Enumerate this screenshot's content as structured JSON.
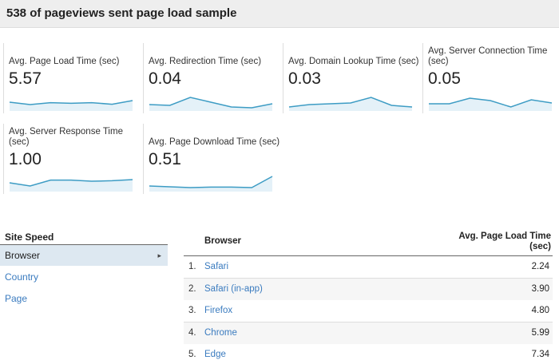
{
  "header": {
    "title": "538 of pageviews sent page load sample"
  },
  "metrics": [
    {
      "label": "Avg. Page Load Time (sec)",
      "value": "5.57",
      "trend": [
        0.45,
        0.3,
        0.42,
        0.38,
        0.42,
        0.32,
        0.55
      ]
    },
    {
      "label": "Avg. Redirection Time (sec)",
      "value": "0.04",
      "trend": [
        0.3,
        0.25,
        0.75,
        0.45,
        0.15,
        0.1,
        0.35
      ]
    },
    {
      "label": "Avg. Domain Lookup Time (sec)",
      "value": "0.03",
      "trend": [
        0.15,
        0.3,
        0.35,
        0.4,
        0.75,
        0.25,
        0.15
      ]
    },
    {
      "label": "Avg. Server Connection Time (sec)",
      "value": "0.05",
      "trend": [
        0.35,
        0.35,
        0.7,
        0.55,
        0.15,
        0.6,
        0.4
      ]
    },
    {
      "label": "Avg. Server Response Time (sec)",
      "value": "1.00",
      "trend": [
        0.45,
        0.25,
        0.62,
        0.62,
        0.55,
        0.58,
        0.65
      ]
    },
    {
      "label": "Avg. Page Download Time (sec)",
      "value": "0.51",
      "trend": [
        0.25,
        0.2,
        0.15,
        0.18,
        0.18,
        0.15,
        0.85
      ]
    }
  ],
  "site_speed": {
    "title": "Site Speed",
    "items": [
      "Browser",
      "Country",
      "Page"
    ]
  },
  "table": {
    "columns": [
      "Browser",
      "Avg. Page Load Time (sec)"
    ],
    "rows": [
      [
        "1.",
        "Safari",
        "2.24"
      ],
      [
        "2.",
        "Safari (in-app)",
        "3.90"
      ],
      [
        "3.",
        "Firefox",
        "4.80"
      ],
      [
        "4.",
        "Chrome",
        "5.99"
      ],
      [
        "5.",
        "Edge",
        "7.34"
      ]
    ]
  }
}
